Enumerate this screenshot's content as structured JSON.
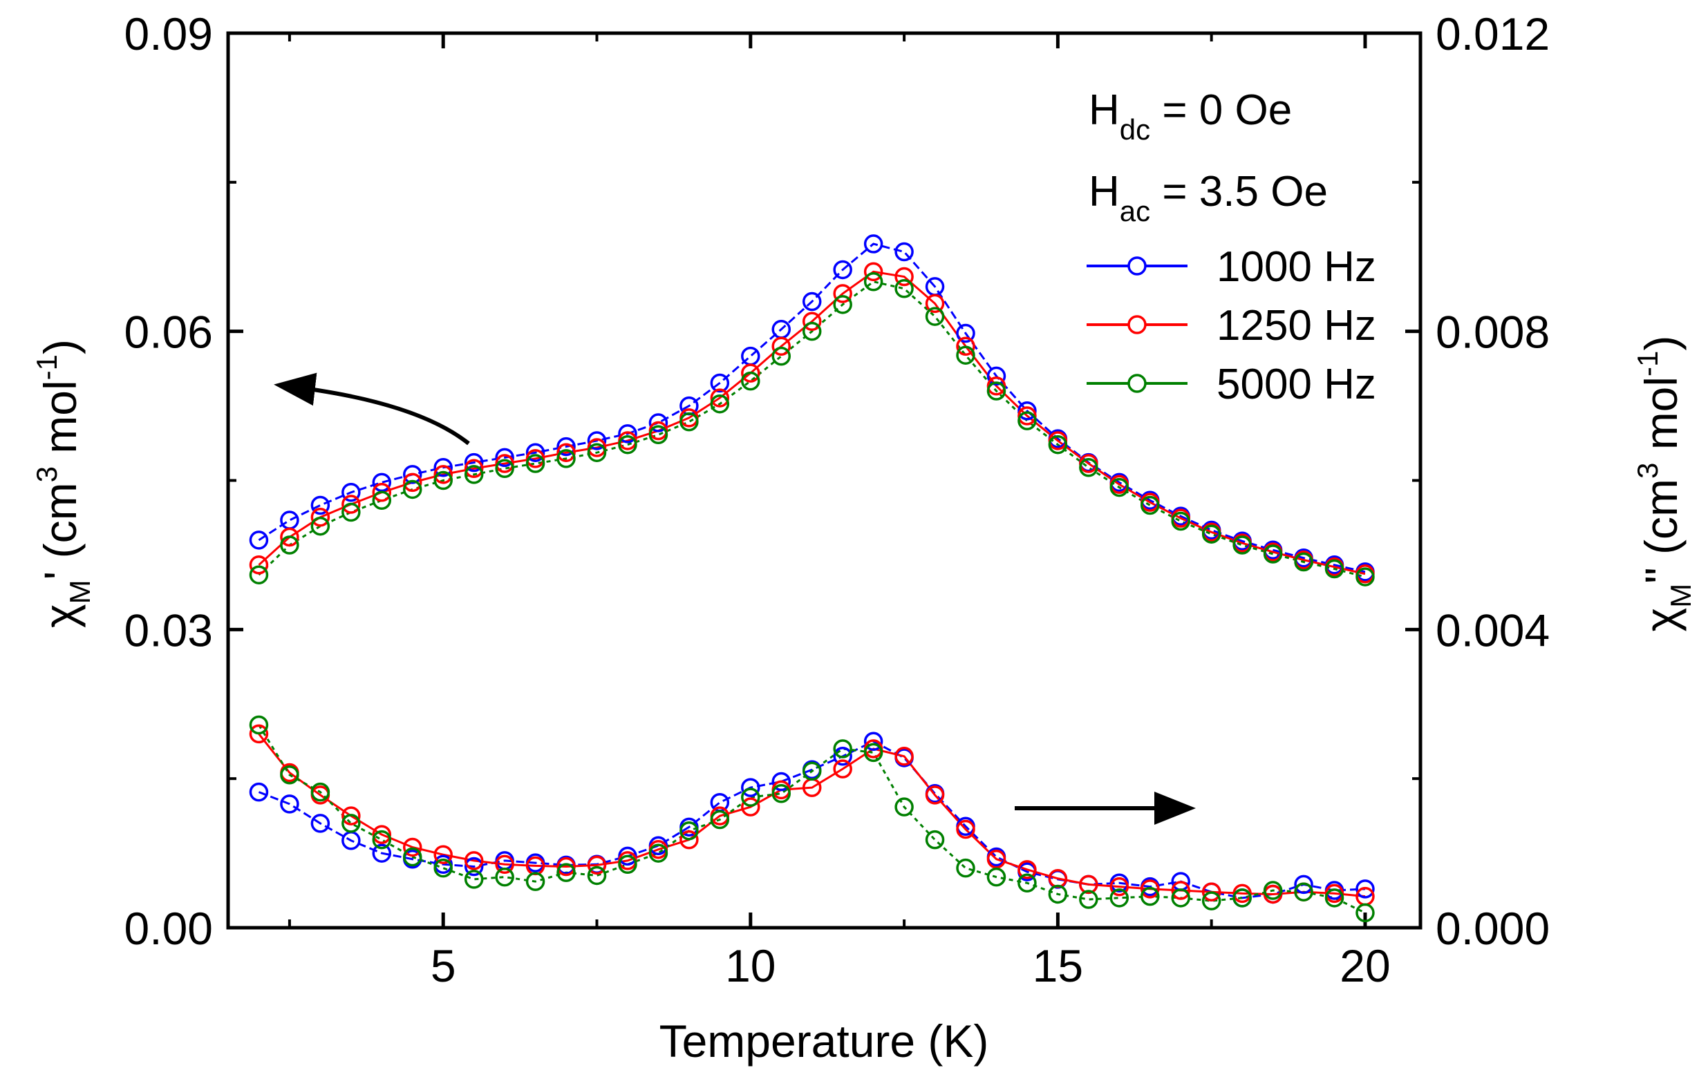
{
  "chart_data": {
    "type": "scatter",
    "x_axis": {
      "label": "Temperature (K)",
      "range": [
        1.5,
        20.9
      ],
      "ticks": [
        5,
        10,
        15,
        20
      ],
      "tick_labels": [
        "5",
        "10",
        "15",
        "20"
      ]
    },
    "y_left": {
      "label_main": "χ",
      "label_sub": "M",
      "label_rest": "' (cm",
      "label_sup3": "3",
      "label_mol": " mol",
      "label_supm1": "-1",
      "label_close": ")",
      "range": [
        0,
        0.09
      ],
      "ticks": [
        0,
        0.03,
        0.06,
        0.09
      ],
      "tick_labels": [
        "0.00",
        "0.03",
        "0.06",
        "0.09"
      ]
    },
    "y_right": {
      "label_main": "χ",
      "label_sub": "M",
      "label_rest": "\" (cm",
      "label_sup3": "3",
      "label_mol": " mol",
      "label_supm1": "-1",
      "label_close": ")",
      "range": [
        0,
        0.012
      ],
      "ticks": [
        0,
        0.004,
        0.008,
        0.012
      ],
      "tick_labels": [
        "0.000",
        "0.004",
        "0.008",
        "0.012"
      ]
    },
    "annotations": {
      "hdc_main": "H",
      "hdc_sub": "dc",
      "hdc_rest": " = 0 Oe",
      "hac_main": "H",
      "hac_sub": "ac",
      "hac_rest": " = 3.5 Oe"
    },
    "legend_placement": "top-right",
    "x": [
      2,
      2.5,
      3,
      3.5,
      4,
      4.5,
      5,
      5.5,
      6,
      6.5,
      7,
      7.5,
      8,
      8.5,
      9,
      9.5,
      10,
      10.5,
      11,
      11.5,
      12,
      12.5,
      13,
      13.5,
      14,
      14.5,
      15,
      15.5,
      16,
      16.5,
      17,
      17.5,
      18,
      18.5,
      19,
      19.5,
      20
    ],
    "series": [
      {
        "name": "1000 Hz",
        "color": "#0000ff",
        "in_phase": [
          0.039,
          0.041,
          0.0425,
          0.0438,
          0.0448,
          0.0456,
          0.0463,
          0.0468,
          0.0473,
          0.0478,
          0.0484,
          0.049,
          0.0497,
          0.0508,
          0.0525,
          0.0548,
          0.0575,
          0.0602,
          0.063,
          0.0662,
          0.0688,
          0.068,
          0.0645,
          0.0598,
          0.0555,
          0.052,
          0.0492,
          0.0468,
          0.0448,
          0.043,
          0.0414,
          0.04,
          0.0389,
          0.038,
          0.0372,
          0.0365,
          0.0358
        ],
        "out_of_phase": [
          0.00182,
          0.00166,
          0.0014,
          0.00117,
          0.001,
          0.00092,
          0.00085,
          0.00082,
          0.0009,
          0.00087,
          0.00084,
          0.00085,
          0.00096,
          0.0011,
          0.00135,
          0.00168,
          0.00188,
          0.00196,
          0.00212,
          0.0023,
          0.0025,
          0.00228,
          0.0018,
          0.00136,
          0.00095,
          0.00075,
          0.00065,
          0.00058,
          0.0006,
          0.00055,
          0.00062,
          0.00048,
          0.0004,
          0.00045,
          0.00058,
          0.0005,
          0.00052
        ]
      },
      {
        "name": "1250 Hz",
        "color": "#ff0000",
        "in_phase": [
          0.0365,
          0.0393,
          0.0413,
          0.0426,
          0.0438,
          0.0448,
          0.0456,
          0.0462,
          0.0467,
          0.0472,
          0.0478,
          0.0483,
          0.049,
          0.05,
          0.0513,
          0.0533,
          0.0558,
          0.0585,
          0.061,
          0.0638,
          0.066,
          0.0655,
          0.0628,
          0.0585,
          0.0545,
          0.0515,
          0.049,
          0.0467,
          0.0446,
          0.0428,
          0.0412,
          0.0398,
          0.0387,
          0.0378,
          0.037,
          0.0363,
          0.0356
        ],
        "out_of_phase": [
          0.0026,
          0.00208,
          0.00178,
          0.0015,
          0.00125,
          0.00108,
          0.00098,
          0.0009,
          0.00085,
          0.00083,
          0.00082,
          0.00084,
          0.0009,
          0.00105,
          0.00118,
          0.0015,
          0.00162,
          0.00185,
          0.00188,
          0.00213,
          0.0024,
          0.0023,
          0.00178,
          0.00132,
          0.00092,
          0.00078,
          0.00066,
          0.00058,
          0.00055,
          0.00052,
          0.0005,
          0.00048,
          0.00046,
          0.00045,
          0.00048,
          0.00046,
          0.00042
        ]
      },
      {
        "name": "5000 Hz",
        "color": "#008000",
        "in_phase": [
          0.0355,
          0.0385,
          0.0404,
          0.0418,
          0.043,
          0.0441,
          0.045,
          0.0456,
          0.0462,
          0.0467,
          0.0472,
          0.0478,
          0.0486,
          0.0496,
          0.0509,
          0.0527,
          0.055,
          0.0575,
          0.06,
          0.0627,
          0.065,
          0.0643,
          0.0615,
          0.0576,
          0.054,
          0.051,
          0.0486,
          0.0463,
          0.0443,
          0.0425,
          0.0409,
          0.0396,
          0.0385,
          0.0376,
          0.0368,
          0.0361,
          0.0353
        ],
        "out_of_phase": [
          0.00272,
          0.00205,
          0.00182,
          0.0014,
          0.00118,
          0.00095,
          0.0008,
          0.00065,
          0.00068,
          0.00062,
          0.00074,
          0.0007,
          0.00085,
          0.001,
          0.0013,
          0.00145,
          0.00175,
          0.0018,
          0.0021,
          0.0024,
          0.00235,
          0.00162,
          0.00118,
          0.0008,
          0.00068,
          0.0006,
          0.00045,
          0.00038,
          0.0004,
          0.00042,
          0.0004,
          0.00036,
          0.0004,
          0.0005,
          0.00048,
          0.0004,
          0.0002
        ]
      }
    ]
  }
}
